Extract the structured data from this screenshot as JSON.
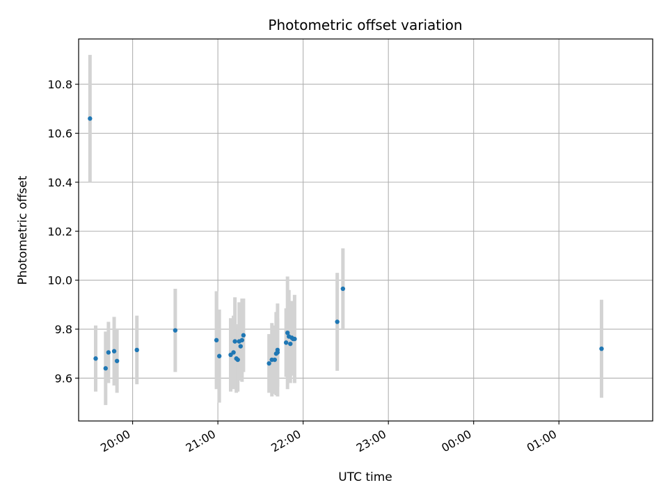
{
  "chart_data": {
    "type": "scatter",
    "title": "Photometric offset variation",
    "xlabel": "UTC time",
    "ylabel": "Photometric offset",
    "grid": true,
    "legend": "none",
    "point_color": "#1f77b4",
    "errorbar_color": "#d3d3d3",
    "xlim": [
      "19:22",
      "02:06"
    ],
    "ylim": [
      9.425,
      10.985
    ],
    "x_ticks": [
      "20:00",
      "21:00",
      "22:00",
      "23:00",
      "00:00",
      "01:00"
    ],
    "y_ticks": [
      "9.6",
      "9.8",
      "10.0",
      "10.2",
      "10.4",
      "10.6",
      "10.8"
    ],
    "series": [
      {
        "points": [
          {
            "t": "19:30",
            "y": 10.66,
            "err": 0.26
          },
          {
            "t": "19:34",
            "y": 9.68,
            "err": 0.135
          },
          {
            "t": "19:41",
            "y": 9.64,
            "err": 0.15
          },
          {
            "t": "19:43",
            "y": 9.705,
            "err": 0.125
          },
          {
            "t": "19:47",
            "y": 9.71,
            "err": 0.14
          },
          {
            "t": "19:49",
            "y": 9.67,
            "err": 0.13
          },
          {
            "t": "20:03",
            "y": 9.715,
            "err": 0.14
          },
          {
            "t": "20:30",
            "y": 9.795,
            "err": 0.17
          },
          {
            "t": "20:59",
            "y": 9.755,
            "err": 0.2
          },
          {
            "t": "21:01",
            "y": 9.69,
            "err": 0.19
          },
          {
            "t": "21:09",
            "y": 9.695,
            "err": 0.15
          },
          {
            "t": "21:11",
            "y": 9.705,
            "err": 0.15
          },
          {
            "t": "21:12",
            "y": 9.75,
            "err": 0.18
          },
          {
            "t": "21:13",
            "y": 9.68,
            "err": 0.14
          },
          {
            "t": "21:14",
            "y": 9.675,
            "err": 0.13
          },
          {
            "t": "21:15",
            "y": 9.75,
            "err": 0.16
          },
          {
            "t": "21:16",
            "y": 9.73,
            "err": 0.12
          },
          {
            "t": "21:17",
            "y": 9.755,
            "err": 0.17
          },
          {
            "t": "21:18",
            "y": 9.775,
            "err": 0.15
          },
          {
            "t": "21:36",
            "y": 9.66,
            "err": 0.12
          },
          {
            "t": "21:38",
            "y": 9.675,
            "err": 0.15
          },
          {
            "t": "21:40",
            "y": 9.675,
            "err": 0.14
          },
          {
            "t": "21:41",
            "y": 9.7,
            "err": 0.17
          },
          {
            "t": "21:42",
            "y": 9.715,
            "err": 0.19
          },
          {
            "t": "21:42",
            "y": 9.705,
            "err": 0.14
          },
          {
            "t": "21:48",
            "y": 9.745,
            "err": 0.14
          },
          {
            "t": "21:49",
            "y": 9.785,
            "err": 0.23
          },
          {
            "t": "21:50",
            "y": 9.77,
            "err": 0.19
          },
          {
            "t": "21:51",
            "y": 9.74,
            "err": 0.16
          },
          {
            "t": "21:52",
            "y": 9.765,
            "err": 0.15
          },
          {
            "t": "21:53",
            "y": 9.76,
            "err": 0.15
          },
          {
            "t": "21:54",
            "y": 9.76,
            "err": 0.18
          },
          {
            "t": "22:24",
            "y": 9.83,
            "err": 0.2
          },
          {
            "t": "22:28",
            "y": 9.965,
            "err": 0.165
          },
          {
            "t": "01:30",
            "y": 9.72,
            "err": 0.2
          }
        ]
      }
    ]
  }
}
